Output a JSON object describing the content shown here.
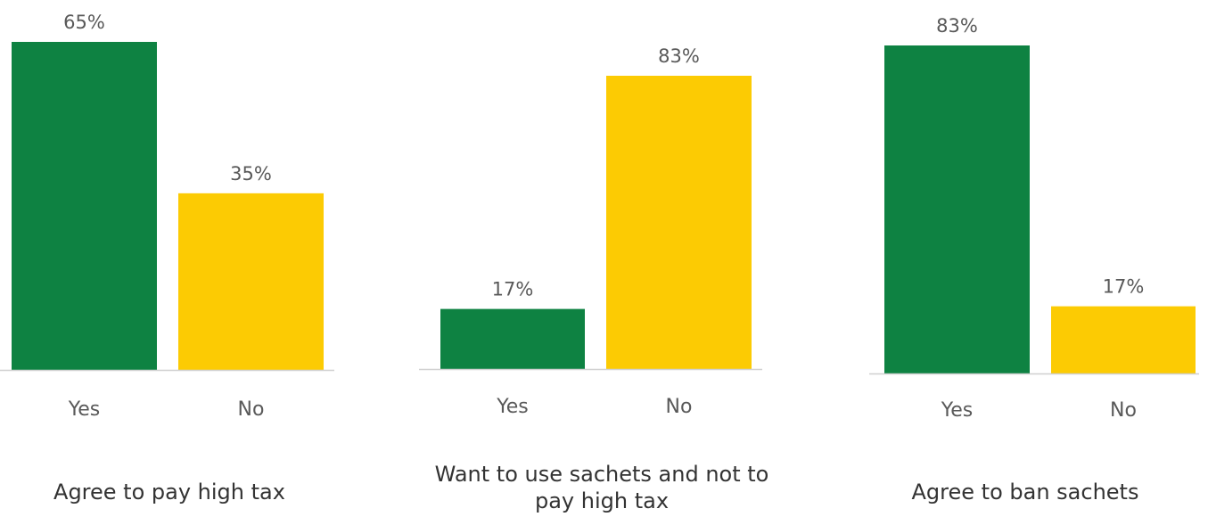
{
  "colors": {
    "yes": "#0e8242",
    "no": "#fccb03",
    "axis": "#d0d0d0",
    "text": "#595959"
  },
  "chart_data": [
    {
      "type": "bar",
      "categories": [
        "Yes",
        "No"
      ],
      "values": [
        65,
        35
      ],
      "data_labels": [
        "65%",
        "35%"
      ],
      "ylim": [
        0,
        65
      ],
      "caption": "Agree to pay high tax"
    },
    {
      "type": "bar",
      "categories": [
        "Yes",
        "No"
      ],
      "values": [
        17,
        83
      ],
      "data_labels": [
        "17%",
        "83%"
      ],
      "ylim": [
        0,
        83
      ],
      "caption": "Want to use sachets and not to pay high tax"
    },
    {
      "type": "bar",
      "categories": [
        "Yes",
        "No"
      ],
      "values": [
        83,
        17
      ],
      "data_labels": [
        "83%",
        "17%"
      ],
      "ylim": [
        0,
        83
      ],
      "caption": "Agree to ban sachets"
    }
  ]
}
